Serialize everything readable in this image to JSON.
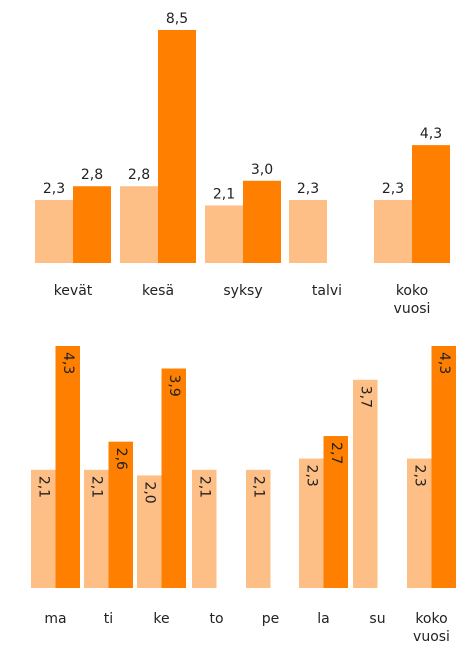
{
  "chart_data": [
    {
      "type": "bar",
      "categories": [
        "kevät",
        "kesä",
        "syksy",
        "talvi",
        "koko vuosi"
      ],
      "series": [
        {
          "color": "#fdbf85",
          "values": [
            2.3,
            2.8,
            2.1,
            2.3,
            2.3
          ],
          "value_labels": [
            "2,3",
            "2,8",
            "2,1",
            "2,3",
            "2,3"
          ]
        },
        {
          "color": "#ff7f00",
          "values": [
            2.8,
            8.5,
            3.0,
            null,
            4.3
          ],
          "value_labels": [
            "2,8",
            "8,5",
            "3,0",
            null,
            "4,3"
          ]
        }
      ],
      "ylim": [
        0,
        8.5
      ]
    },
    {
      "type": "bar",
      "categories": [
        "ma",
        "ti",
        "ke",
        "to",
        "pe",
        "la",
        "su",
        "koko vuosi"
      ],
      "series": [
        {
          "color": "#fdbf85",
          "values": [
            2.1,
            2.1,
            2.0,
            2.1,
            2.1,
            2.3,
            3.7,
            2.3
          ],
          "value_labels": [
            "2,1",
            "2,1",
            "2,0",
            "2,1",
            "2,1",
            "2,3",
            "3,7",
            "2,3"
          ]
        },
        {
          "color": "#ff7f00",
          "values": [
            4.3,
            2.6,
            3.9,
            null,
            null,
            2.7,
            null,
            4.3
          ],
          "value_labels": [
            "4,3",
            "2,6",
            "3,9",
            null,
            null,
            "2,7",
            null,
            "4,3"
          ]
        }
      ],
      "ylim": [
        0,
        4.3
      ]
    }
  ]
}
